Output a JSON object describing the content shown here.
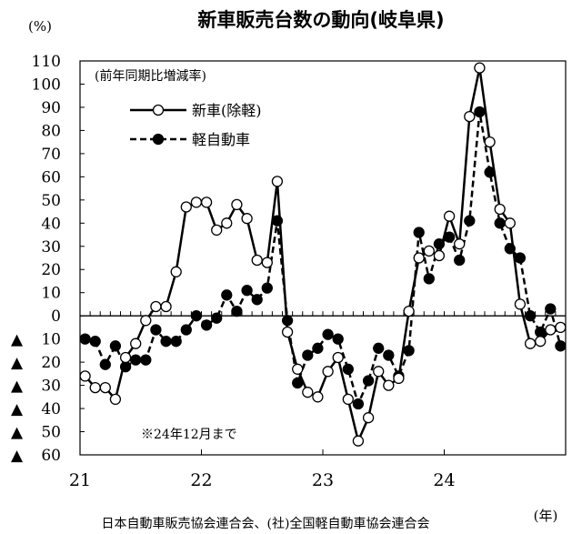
{
  "chart_data": {
    "type": "line",
    "title": "新車販売台数の動向(岐阜県)",
    "ylabel": "(%)",
    "xlabel": "(年)",
    "ylim": [
      -60,
      110
    ],
    "yticks": [
      110,
      100,
      90,
      80,
      70,
      60,
      50,
      40,
      30,
      20,
      10,
      0,
      -10,
      -20,
      -30,
      -40,
      -50,
      -60
    ],
    "ytick_labels": [
      "110",
      "100",
      "90",
      "80",
      "70",
      "60",
      "50",
      "40",
      "30",
      "20",
      "10",
      "0",
      "▲ 10",
      "▲ 20",
      "▲ 30",
      "▲ 40",
      "▲ 50",
      "▲ 60"
    ],
    "xlim": [
      2021,
      2025
    ],
    "x_tick_labels": [
      "21",
      "22",
      "23",
      "24"
    ],
    "x_tick_values": [
      2021,
      2022,
      2023,
      2024
    ],
    "grid": false,
    "legend_title": "(前年同期比増減率)",
    "legend_position": "top-left",
    "annotation": "※24年12月まで",
    "source": "日本自動車販売協会連合会、(社)全国軽自動車協会連合会",
    "series": [
      {
        "name": "新車(除軽)",
        "style": "solid",
        "marker": "open-circle",
        "values": [
          -26,
          -31,
          -31,
          -36,
          -18,
          -12,
          -2,
          4,
          4,
          19,
          47,
          49,
          49,
          37,
          40,
          48,
          42,
          24,
          23,
          58,
          -7,
          -23,
          -33,
          -35,
          -24,
          -18,
          -36,
          -54,
          -44,
          -24,
          -30,
          -27,
          2,
          25,
          28,
          26,
          43,
          31,
          86,
          107,
          75,
          46,
          40,
          5,
          -12,
          -11,
          -6,
          -5
        ]
      },
      {
        "name": "軽自動車",
        "style": "dashed",
        "marker": "filled-circle",
        "values": [
          -10,
          -11,
          -21,
          -13,
          -22,
          -19,
          -19,
          -6,
          -11,
          -11,
          -6,
          0,
          -4,
          -1,
          9,
          2,
          11,
          7,
          12,
          41,
          -2,
          -29,
          -17,
          -14,
          -8,
          -10,
          -23,
          -38,
          -28,
          -14,
          -17,
          -26,
          -15,
          36,
          16,
          31,
          34,
          24,
          41,
          88,
          62,
          40,
          29,
          25,
          0,
          -7,
          3,
          -13
        ]
      }
    ]
  }
}
